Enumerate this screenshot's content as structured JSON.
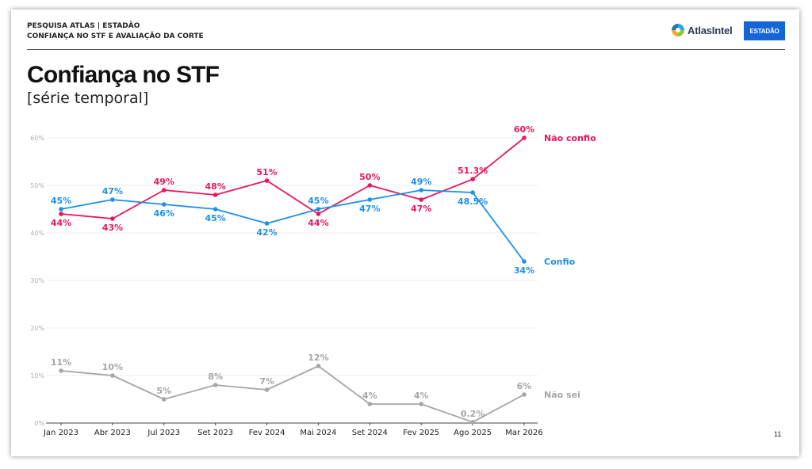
{
  "header": {
    "line1": "PESQUISA ATLAS | ESTADÃO",
    "line2": "CONFIANÇA NO STF E AVALIAÇÃO DA CORTE"
  },
  "logos": {
    "atlas": "AtlasIntel",
    "estadao": "ESTADÃO"
  },
  "title": "Confiança no STF",
  "subtitle": "[série temporal]",
  "page_number": "11",
  "chart_data": {
    "type": "line",
    "categories": [
      "Jan 2023",
      "Abr 2023",
      "Jul 2023",
      "Set 2023",
      "Fev 2024",
      "Mai 2024",
      "Set 2024",
      "Fev 2025",
      "Ago 2025",
      "Mar 2026"
    ],
    "ylim": [
      0,
      60
    ],
    "yticks": [
      0,
      10,
      20,
      30,
      40,
      50,
      60
    ],
    "ytick_labels": [
      "0%",
      "10%",
      "20%",
      "30%",
      "40%",
      "50%",
      "60%"
    ],
    "grid": true,
    "series": [
      {
        "name": "Não confio",
        "color": "#e8175d",
        "values": [
          44,
          43,
          49,
          48,
          51,
          44,
          50,
          47,
          51.3,
          60
        ],
        "labels": [
          "44%",
          "43%",
          "49%",
          "48%",
          "51%",
          "44%",
          "50%",
          "47%",
          "51.3%",
          "60%"
        ]
      },
      {
        "name": "Confio",
        "color": "#1e90e8",
        "values": [
          45,
          47,
          46,
          45,
          42,
          45,
          47,
          49,
          48.5,
          34
        ],
        "labels": [
          "45%",
          "47%",
          "46%",
          "45%",
          "42%",
          "45%",
          "47%",
          "49%",
          "48.5%",
          "34%"
        ]
      },
      {
        "name": "Não sei",
        "color": "#a6a6a6",
        "values": [
          11,
          10,
          5,
          8,
          7,
          12,
          4,
          4,
          0.2,
          6
        ],
        "labels": [
          "11%",
          "10%",
          "5%",
          "8%",
          "7%",
          "12%",
          "4%",
          "4%",
          "0.2%",
          "6%"
        ]
      }
    ]
  }
}
